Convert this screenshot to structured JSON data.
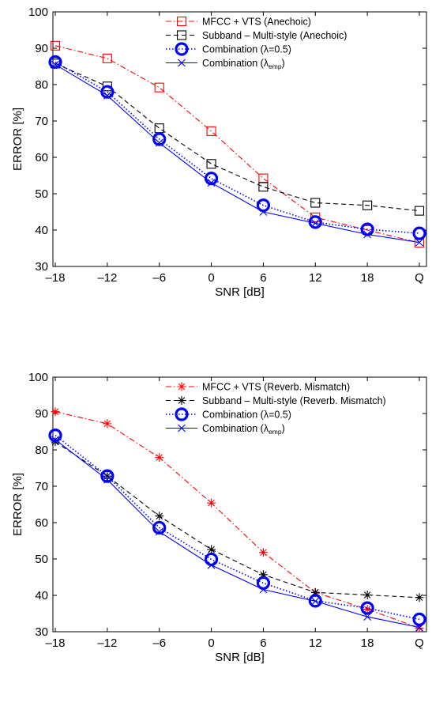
{
  "chart_data": [
    {
      "type": "line",
      "categories": [
        "–18",
        "–12",
        "–6",
        "0",
        "6",
        "12",
        "18",
        "Q"
      ],
      "xlabel": "SNR [dB]",
      "ylabel": "ERROR [%]",
      "ylim": [
        30,
        100
      ],
      "yticks": [
        "30",
        "40",
        "50",
        "60",
        "70",
        "80",
        "90",
        "100"
      ],
      "legend_position": "top-right",
      "series": [
        {
          "name": "MFCC + VTS (Anechoic)",
          "color": "#ff0000",
          "line": "dashdot",
          "marker": "square",
          "values": [
            90.7,
            87.2,
            79.2,
            67.2,
            54.2,
            43.5,
            40.0,
            36.5
          ]
        },
        {
          "name": "Subband – Multi-style (Anechoic)",
          "color": "#000000",
          "line": "dashed",
          "marker": "square",
          "values": [
            85.8,
            79.5,
            68.0,
            58.2,
            51.9,
            47.5,
            46.8,
            45.3
          ]
        },
        {
          "name": "Combination (λ=0.5)",
          "color": "#0000ff",
          "line": "dotted",
          "marker": "circle",
          "values": [
            86.2,
            78.0,
            65.0,
            54.2,
            46.8,
            42.2,
            40.2,
            39.1
          ]
        },
        {
          "name": "Combination (λ",
          "name_sub": "emp",
          "name_tail": ")",
          "color": "#0000ff",
          "line": "solid",
          "marker": "x",
          "values": [
            85.5,
            77.0,
            64.0,
            53.0,
            45.0,
            41.9,
            38.8,
            36.6
          ]
        }
      ]
    },
    {
      "type": "line",
      "categories": [
        "–18",
        "–12",
        "–6",
        "0",
        "6",
        "12",
        "18",
        "Q"
      ],
      "xlabel": "SNR [dB]",
      "ylabel": "ERROR [%]",
      "ylim": [
        30,
        100
      ],
      "yticks": [
        "30",
        "40",
        "50",
        "60",
        "70",
        "80",
        "90",
        "100"
      ],
      "legend_position": "top-right",
      "series": [
        {
          "name": "MFCC + VTS (Reverb. Mismatch)",
          "color": "#ff0000",
          "line": "dashdot",
          "marker": "asterisk",
          "values": [
            90.5,
            87.2,
            77.9,
            65.4,
            51.8,
            40.8,
            36.2,
            31.0
          ]
        },
        {
          "name": "Subband – Multi-style (Reverb. Mismatch)",
          "color": "#000000",
          "line": "dashed",
          "marker": "asterisk",
          "values": [
            82.2,
            72.8,
            61.8,
            52.6,
            45.7,
            40.8,
            40.1,
            39.4
          ]
        },
        {
          "name": "Combination (λ=0.5)",
          "color": "#0000ff",
          "line": "dotted",
          "marker": "circle",
          "values": [
            84.0,
            72.8,
            58.6,
            49.9,
            43.4,
            38.5,
            36.5,
            33.4
          ]
        },
        {
          "name": "Combination (λ",
          "name_sub": "emp",
          "name_tail": ")",
          "color": "#0000ff",
          "line": "solid",
          "marker": "x",
          "values": [
            82.8,
            71.8,
            57.5,
            48.3,
            41.6,
            38.4,
            34.1,
            31.2
          ]
        }
      ]
    }
  ]
}
